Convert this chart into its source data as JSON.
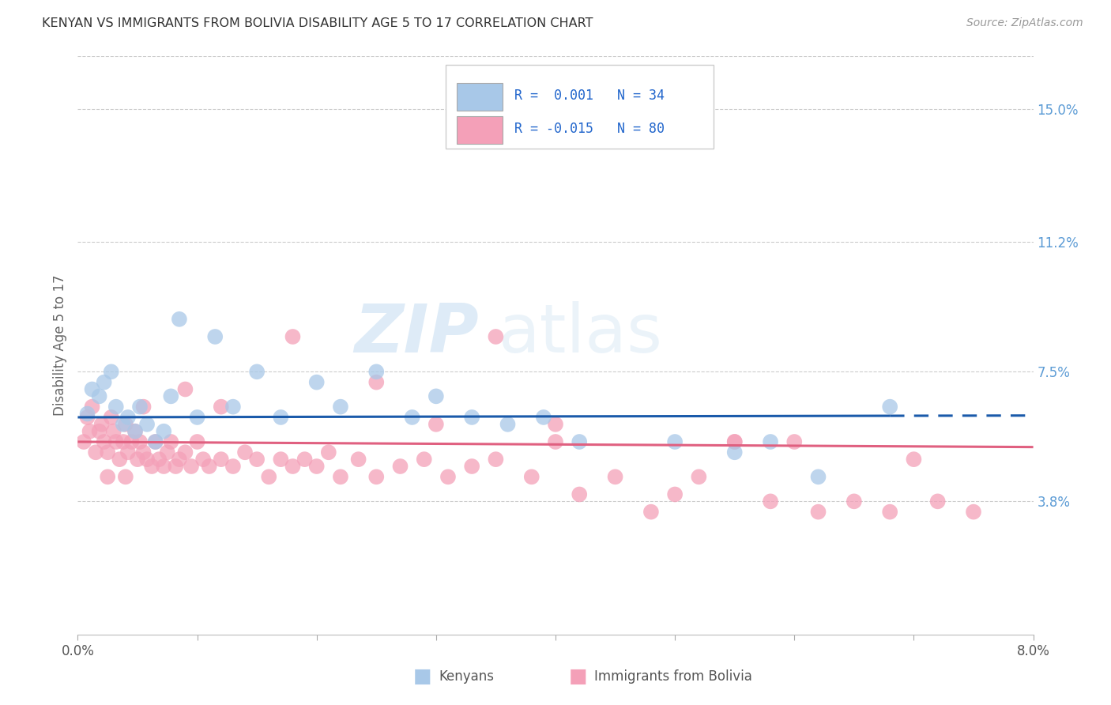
{
  "title": "KENYAN VS IMMIGRANTS FROM BOLIVIA DISABILITY AGE 5 TO 17 CORRELATION CHART",
  "source": "Source: ZipAtlas.com",
  "ylabel_label": "Disability Age 5 to 17",
  "right_ytick_vals": [
    3.8,
    7.5,
    11.2,
    15.0
  ],
  "right_ytick_labels": [
    "3.8%",
    "7.5%",
    "11.2%",
    "15.0%"
  ],
  "xmin": 0.0,
  "xmax": 8.0,
  "ymin": 0.0,
  "ymax": 16.5,
  "kenyan_color": "#a8c8e8",
  "bolivia_color": "#f4a0b8",
  "kenyan_line_color": "#1a5aaa",
  "bolivia_line_color": "#e06080",
  "kenyan_R": "0.001",
  "kenyan_N": "34",
  "bolivia_R": "-0.015",
  "bolivia_N": "80",
  "kenyan_line_y_start": 6.2,
  "kenyan_line_y_end": 6.25,
  "kenyan_line_solid_end": 6.8,
  "bolivia_line_y_start": 5.5,
  "bolivia_line_y_end": 5.35,
  "legend_label_kenyan": "Kenyans",
  "legend_label_bolivia": "Immigrants from Bolivia",
  "watermark_zip": "ZIP",
  "watermark_atlas": "atlas",
  "kenyan_x": [
    0.08,
    0.12,
    0.18,
    0.22,
    0.28,
    0.32,
    0.38,
    0.42,
    0.48,
    0.52,
    0.58,
    0.65,
    0.72,
    0.78,
    0.85,
    1.0,
    1.15,
    1.3,
    1.5,
    1.7,
    2.0,
    2.2,
    2.5,
    2.8,
    3.0,
    3.3,
    3.6,
    3.9,
    4.2,
    5.0,
    5.5,
    5.8,
    6.2,
    6.8
  ],
  "kenyan_y": [
    6.3,
    7.0,
    6.8,
    7.2,
    7.5,
    6.5,
    6.0,
    6.2,
    5.8,
    6.5,
    6.0,
    5.5,
    5.8,
    6.8,
    9.0,
    6.2,
    8.5,
    6.5,
    7.5,
    6.2,
    7.2,
    6.5,
    7.5,
    6.2,
    6.8,
    6.2,
    6.0,
    6.2,
    5.5,
    5.5,
    5.2,
    5.5,
    4.5,
    6.5
  ],
  "bolivia_x": [
    0.05,
    0.08,
    0.1,
    0.12,
    0.15,
    0.18,
    0.2,
    0.22,
    0.25,
    0.28,
    0.3,
    0.32,
    0.35,
    0.38,
    0.4,
    0.42,
    0.45,
    0.48,
    0.5,
    0.52,
    0.55,
    0.58,
    0.62,
    0.65,
    0.68,
    0.72,
    0.75,
    0.78,
    0.82,
    0.85,
    0.9,
    0.95,
    1.0,
    1.05,
    1.1,
    1.2,
    1.3,
    1.4,
    1.5,
    1.6,
    1.7,
    1.8,
    1.9,
    2.0,
    2.1,
    2.2,
    2.35,
    2.5,
    2.7,
    2.9,
    3.1,
    3.3,
    3.5,
    3.8,
    4.0,
    4.2,
    4.5,
    4.8,
    5.0,
    5.2,
    5.5,
    5.8,
    6.0,
    6.2,
    6.5,
    6.8,
    7.0,
    7.2,
    7.5,
    0.25,
    0.4,
    0.55,
    0.9,
    1.2,
    1.8,
    2.5,
    3.0,
    3.5,
    4.0,
    5.5
  ],
  "bolivia_y": [
    5.5,
    6.2,
    5.8,
    6.5,
    5.2,
    5.8,
    6.0,
    5.5,
    5.2,
    6.2,
    5.8,
    5.5,
    5.0,
    5.5,
    6.0,
    5.2,
    5.5,
    5.8,
    5.0,
    5.5,
    5.2,
    5.0,
    4.8,
    5.5,
    5.0,
    4.8,
    5.2,
    5.5,
    4.8,
    5.0,
    5.2,
    4.8,
    5.5,
    5.0,
    4.8,
    5.0,
    4.8,
    5.2,
    5.0,
    4.5,
    5.0,
    4.8,
    5.0,
    4.8,
    5.2,
    4.5,
    5.0,
    4.5,
    4.8,
    5.0,
    4.5,
    4.8,
    5.0,
    4.5,
    5.5,
    4.0,
    4.5,
    3.5,
    4.0,
    4.5,
    5.5,
    3.8,
    5.5,
    3.5,
    3.8,
    3.5,
    5.0,
    3.8,
    3.5,
    4.5,
    4.5,
    6.5,
    7.0,
    6.5,
    8.5,
    7.2,
    6.0,
    8.5,
    6.0,
    5.5
  ]
}
